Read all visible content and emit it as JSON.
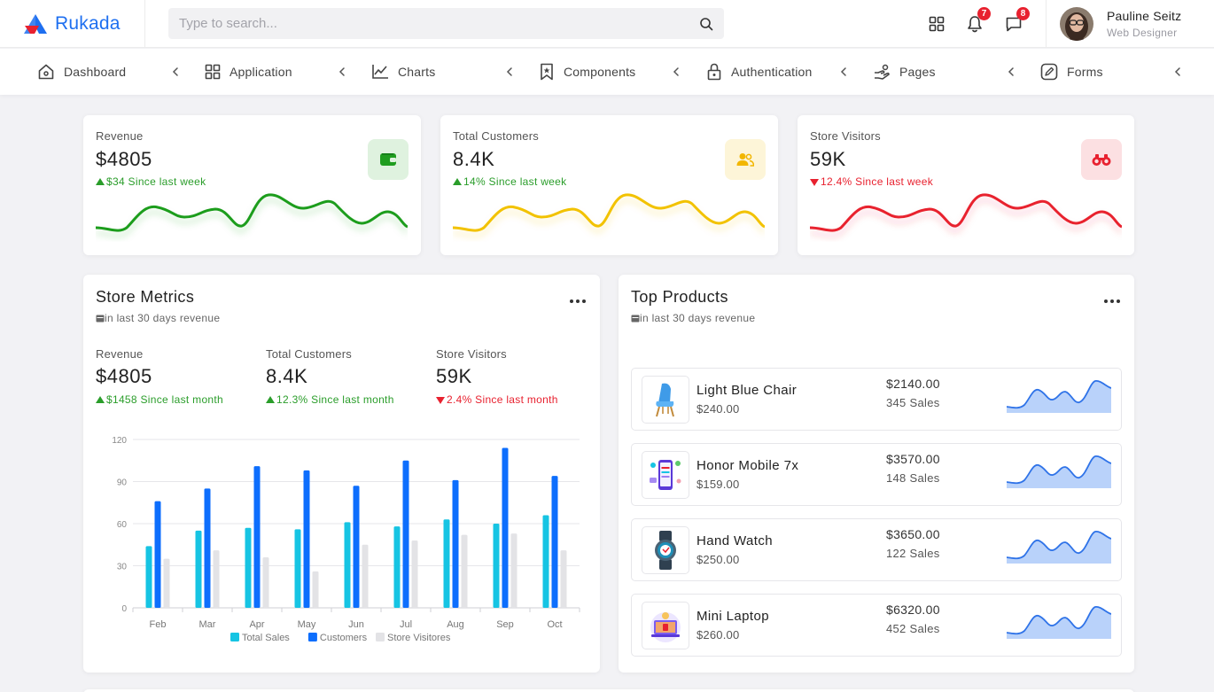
{
  "app": {
    "brand": "Rukada",
    "brand_colors": [
      "#1e6ff0",
      "#e8212f"
    ]
  },
  "search": {
    "placeholder": "Type to search..."
  },
  "header": {
    "notifications_count": "7",
    "messages_count": "8",
    "user": {
      "name": "Pauline Seitz",
      "role": "Web Designer"
    }
  },
  "nav": {
    "items": [
      {
        "label": "Dashboard",
        "icon": "home-icon"
      },
      {
        "label": "Application",
        "icon": "grid-icon"
      },
      {
        "label": "Charts",
        "icon": "line-chart-icon"
      },
      {
        "label": "Components",
        "icon": "bookmark-icon"
      },
      {
        "label": "Authentication",
        "icon": "lock-icon"
      },
      {
        "label": "Pages",
        "icon": "pages-icon"
      },
      {
        "label": "Forms",
        "icon": "edit-icon"
      }
    ]
  },
  "stats": [
    {
      "label": "Revenue",
      "value": "$4805",
      "change": "$34 Since last week",
      "direction": "up",
      "color": "#2a9d2a",
      "icon": "wallet-icon",
      "icon_bg": "#dff2df"
    },
    {
      "label": "Total Customers",
      "value": "8.4K",
      "change": "14% Since last week",
      "direction": "up",
      "color": "#f2c200",
      "icon": "users-icon",
      "icon_bg": "#fdf5d8"
    },
    {
      "label": "Store Visitors",
      "value": "59K",
      "change": "12.4% Since last week",
      "direction": "down",
      "color": "#e8212f",
      "icon": "binoculars-icon",
      "icon_bg": "#fce0e2"
    }
  ],
  "store_metrics": {
    "title": "Store Metrics",
    "subtitle": "in last 30 days revenue",
    "metrics": [
      {
        "label": "Revenue",
        "value": "$4805",
        "change": "$1458 Since last month",
        "direction": "up"
      },
      {
        "label": "Total Customers",
        "value": "8.4K",
        "change": "12.3% Since last month",
        "direction": "up"
      },
      {
        "label": "Store Visitors",
        "value": "59K",
        "change": "2.4% Since last month",
        "direction": "down"
      }
    ]
  },
  "chart_data": {
    "type": "bar",
    "categories": [
      "Feb",
      "Mar",
      "Apr",
      "May",
      "Jun",
      "Jul",
      "Aug",
      "Sep",
      "Oct"
    ],
    "series": [
      {
        "name": "Total Sales",
        "values": [
          44,
          55,
          57,
          56,
          61,
          58,
          63,
          60,
          66
        ],
        "color": "#16c4e3"
      },
      {
        "name": "Customers",
        "values": [
          76,
          85,
          101,
          98,
          87,
          105,
          91,
          114,
          94
        ],
        "color": "#0d6efd"
      },
      {
        "name": "Store Visitores",
        "values": [
          35,
          41,
          36,
          26,
          45,
          48,
          52,
          53,
          41
        ],
        "color": "#e3e3e6"
      }
    ],
    "yticks": [
      0,
      30,
      60,
      90,
      120
    ],
    "ylim": [
      0,
      120
    ],
    "grid": true,
    "legend": "bottom"
  },
  "top_products": {
    "title": "Top Products",
    "subtitle": "in last 30 days revenue",
    "items": [
      {
        "name": "Light Blue Chair",
        "price": "$240.00",
        "total": "$2140.00",
        "sales": "345 Sales",
        "icon": "chair-icon"
      },
      {
        "name": "Honor Mobile 7x",
        "price": "$159.00",
        "total": "$3570.00",
        "sales": "148 Sales",
        "icon": "mobile-icon"
      },
      {
        "name": "Hand Watch",
        "price": "$250.00",
        "total": "$3650.00",
        "sales": "122 Sales",
        "icon": "watch-icon"
      },
      {
        "name": "Mini Laptop",
        "price": "$260.00",
        "total": "$6320.00",
        "sales": "452 Sales",
        "icon": "laptop-icon"
      }
    ]
  }
}
